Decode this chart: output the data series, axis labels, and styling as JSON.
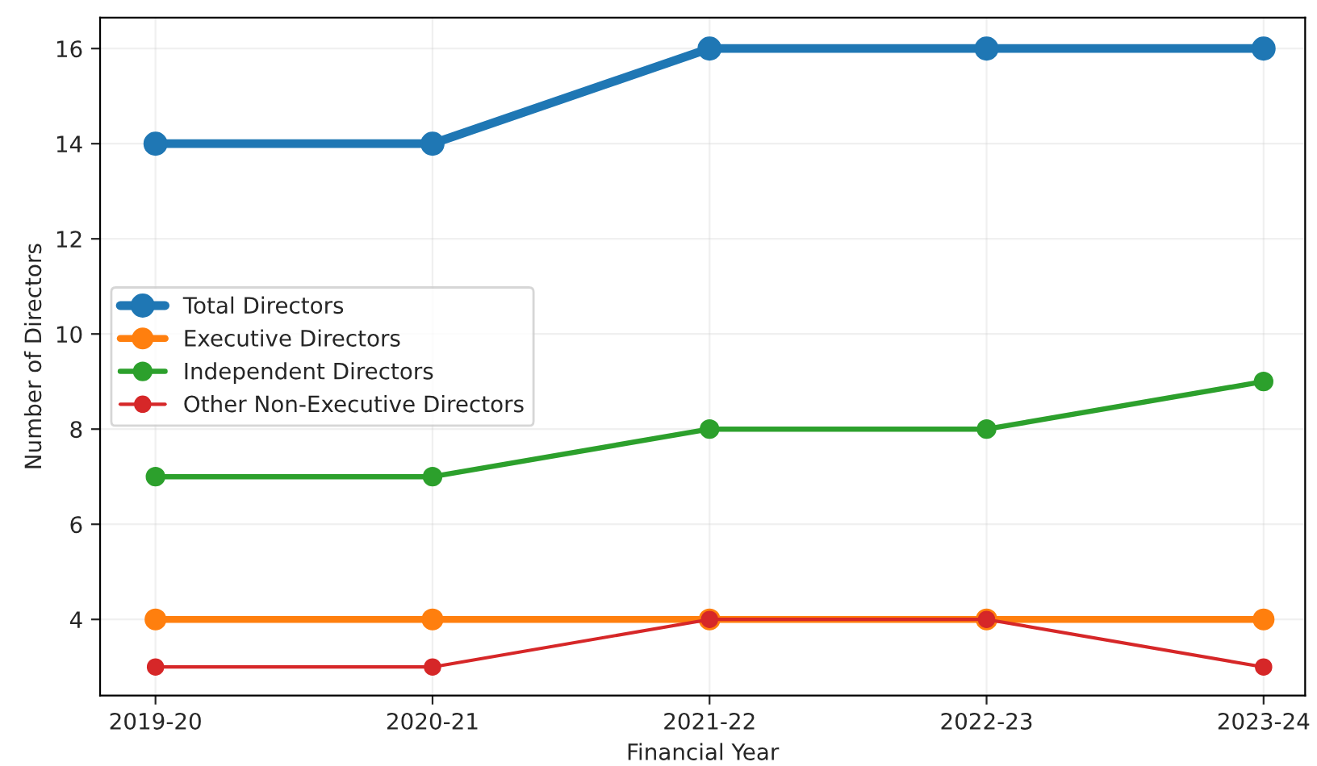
{
  "chart_data": {
    "type": "line",
    "xlabel": "Financial Year",
    "ylabel": "Number of Directors",
    "categories": [
      "2019-20",
      "2020-21",
      "2021-22",
      "2022-23",
      "2023-24"
    ],
    "series": [
      {
        "name": "Total Directors",
        "color": "#1f77b4",
        "values": [
          14,
          14,
          16,
          16,
          16
        ]
      },
      {
        "name": "Executive Directors",
        "color": "#ff7f0e",
        "values": [
          4,
          4,
          4,
          4,
          4
        ]
      },
      {
        "name": "Independent Directors",
        "color": "#2ca02c",
        "values": [
          7,
          7,
          8,
          8,
          9
        ]
      },
      {
        "name": "Other Non-Executive Directors",
        "color": "#d62728",
        "values": [
          3,
          3,
          4,
          4,
          3
        ]
      }
    ],
    "ylim": [
      2.4,
      16.65
    ],
    "yticks": [
      4,
      6,
      8,
      10,
      12,
      14,
      16
    ],
    "grid": true,
    "legend": "left",
    "marker": "circle",
    "line_style": "solid"
  }
}
